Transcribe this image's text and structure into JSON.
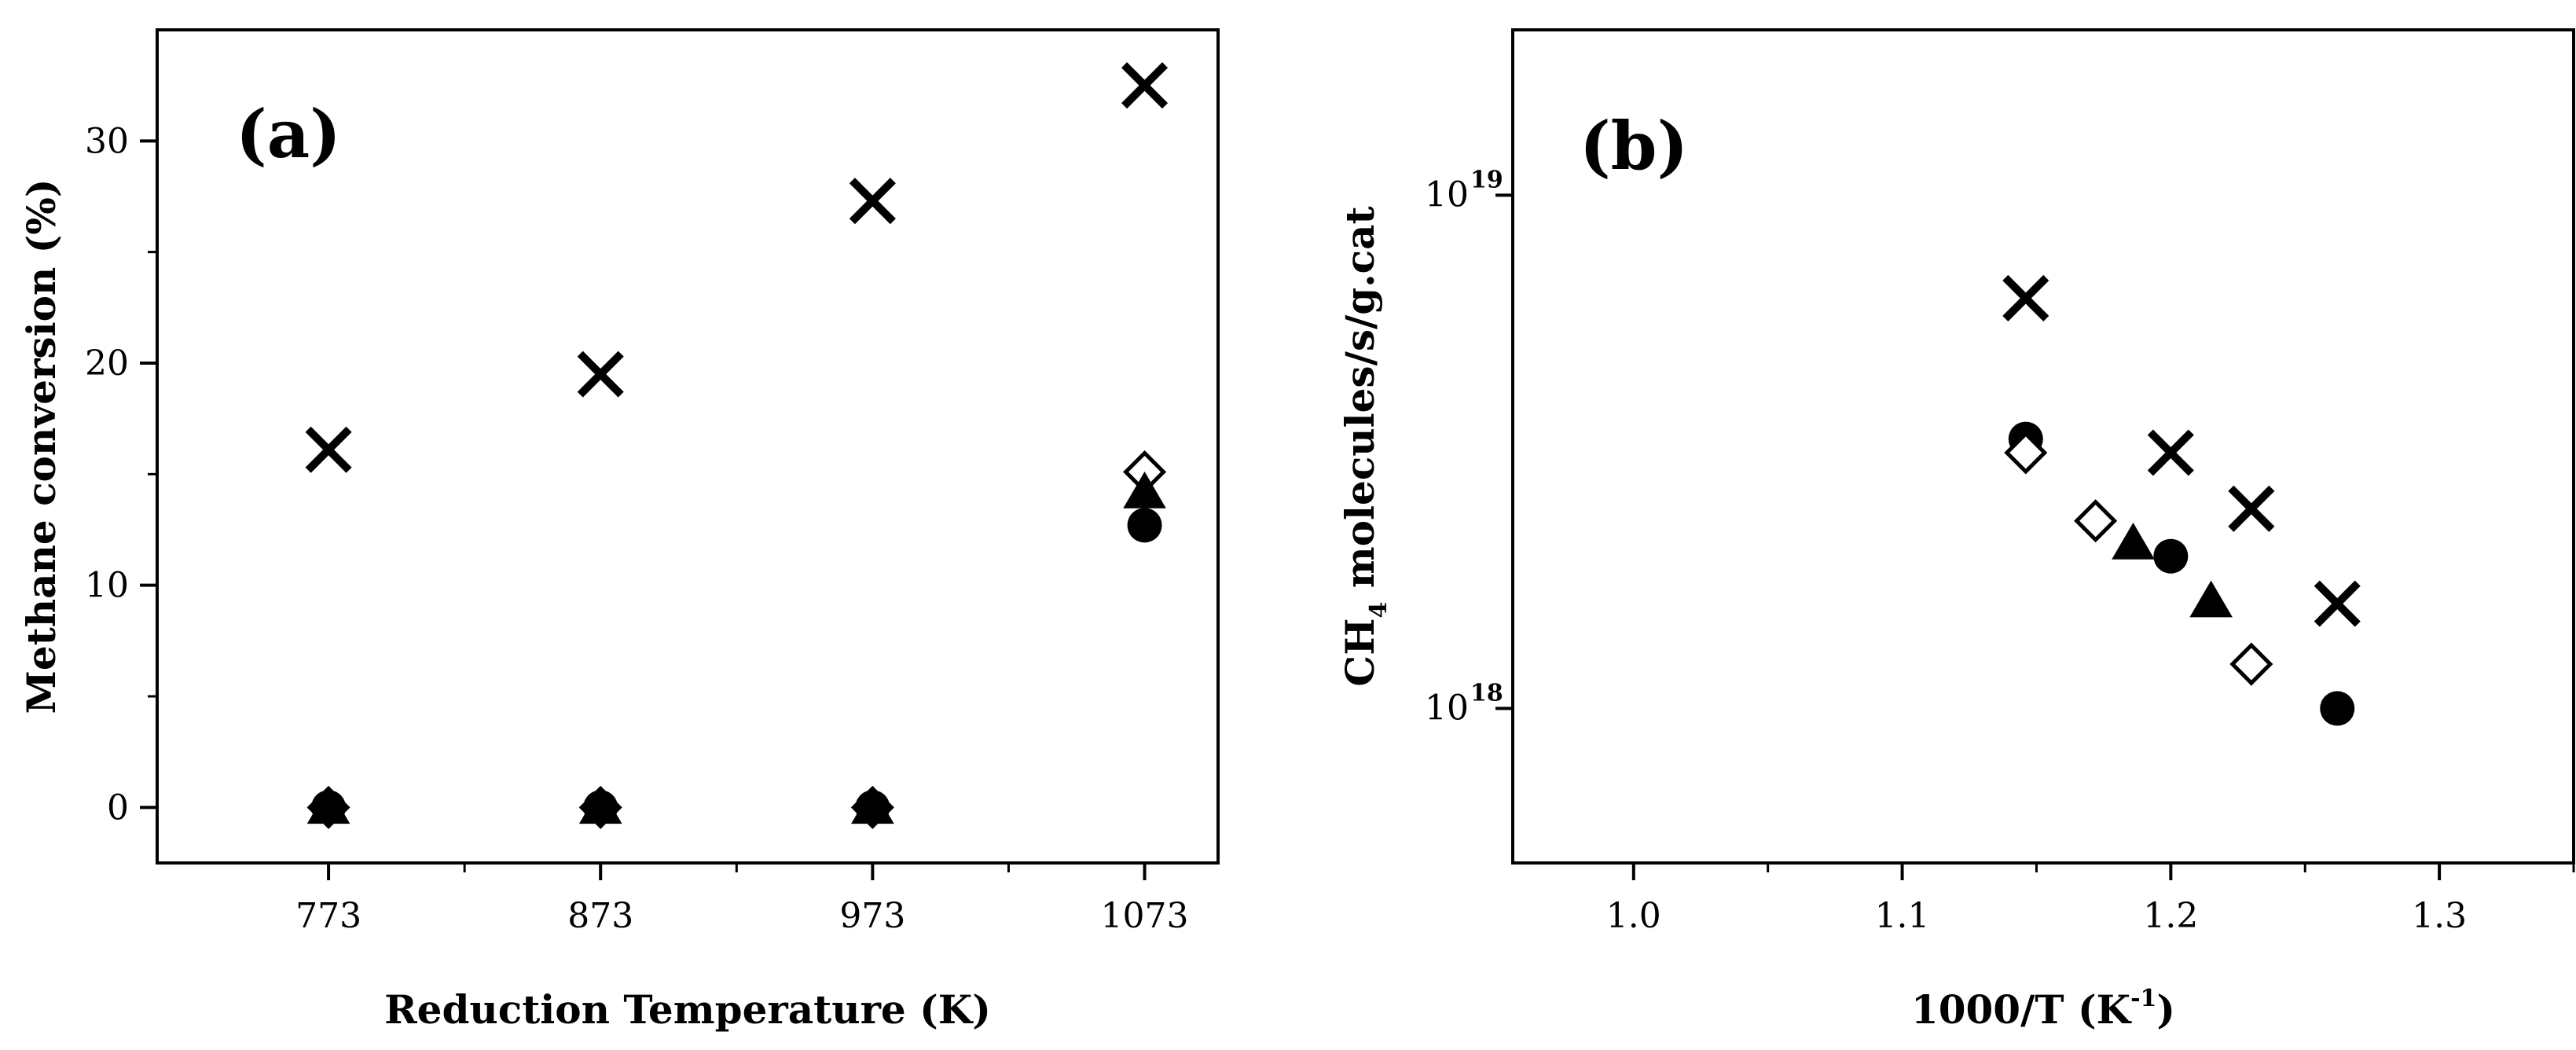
{
  "chart_data": [
    {
      "type": "scatter",
      "panel_label": "(a)",
      "xlabel": "Reduction Temperature (K)",
      "ylabel": "Methane conversion (%)",
      "x_ticks": [
        773,
        873,
        973,
        1073
      ],
      "y_ticks": [
        0,
        10,
        20,
        30
      ],
      "xlim": [
        710,
        1100
      ],
      "ylim": [
        -2.5,
        35
      ],
      "grid": false,
      "legend": "none",
      "series": [
        {
          "marker": "x-cross",
          "x": [
            773,
            873,
            973,
            1073
          ],
          "y": [
            16.1,
            19.5,
            27.3,
            32.5
          ]
        },
        {
          "marker": "diamond-open",
          "x": [
            773,
            873,
            973,
            1073
          ],
          "y": [
            0,
            0,
            0,
            15.1
          ]
        },
        {
          "marker": "triangle-filled",
          "x": [
            773,
            873,
            973,
            1073
          ],
          "y": [
            0,
            0,
            0,
            14.2
          ]
        },
        {
          "marker": "circle-filled",
          "x": [
            773,
            873,
            973,
            1073
          ],
          "y": [
            0,
            0,
            0,
            12.7
          ]
        }
      ]
    },
    {
      "type": "scatter",
      "panel_label": "(b)",
      "xlabel_main": "1000/T (K",
      "xlabel_sup": "-1",
      "xlabel_end": ")",
      "ylabel_pre": "CH",
      "ylabel_sub": "4",
      "ylabel_post": " molecules/s/g.cat",
      "x_ticks": [
        "1.0",
        "1.1",
        "1.2",
        "1.3"
      ],
      "x_tick_values": [
        1.0,
        1.1,
        1.2,
        1.3
      ],
      "y_tick_base": "10",
      "y_tick_exponents": [
        "19",
        "18"
      ],
      "y_tick_values": [
        1e+19,
        1e+18
      ],
      "xlim": [
        0.955,
        1.35
      ],
      "ylim": [
        5e+17,
        2.1e+19
      ],
      "yscale": "log",
      "grid": false,
      "legend": "none",
      "series": [
        {
          "marker": "x-cross",
          "x": [
            1.146,
            1.2,
            1.23,
            1.262
          ],
          "y": [
            6.3e+18,
            3.15e+18,
            2.45e+18,
            1.6e+18
          ]
        },
        {
          "marker": "circle-filled",
          "x": [
            1.146,
            1.2,
            1.262
          ],
          "y": [
            3.35e+18,
            1.98e+18,
            1e+18
          ]
        },
        {
          "marker": "diamond-open",
          "x": [
            1.146,
            1.172,
            1.23
          ],
          "y": [
            3.15e+18,
            2.32e+18,
            1.22e+18
          ]
        },
        {
          "marker": "triangle-filled",
          "x": [
            1.186,
            1.215
          ],
          "y": [
            2.1e+18,
            1.62e+18
          ]
        }
      ]
    }
  ]
}
